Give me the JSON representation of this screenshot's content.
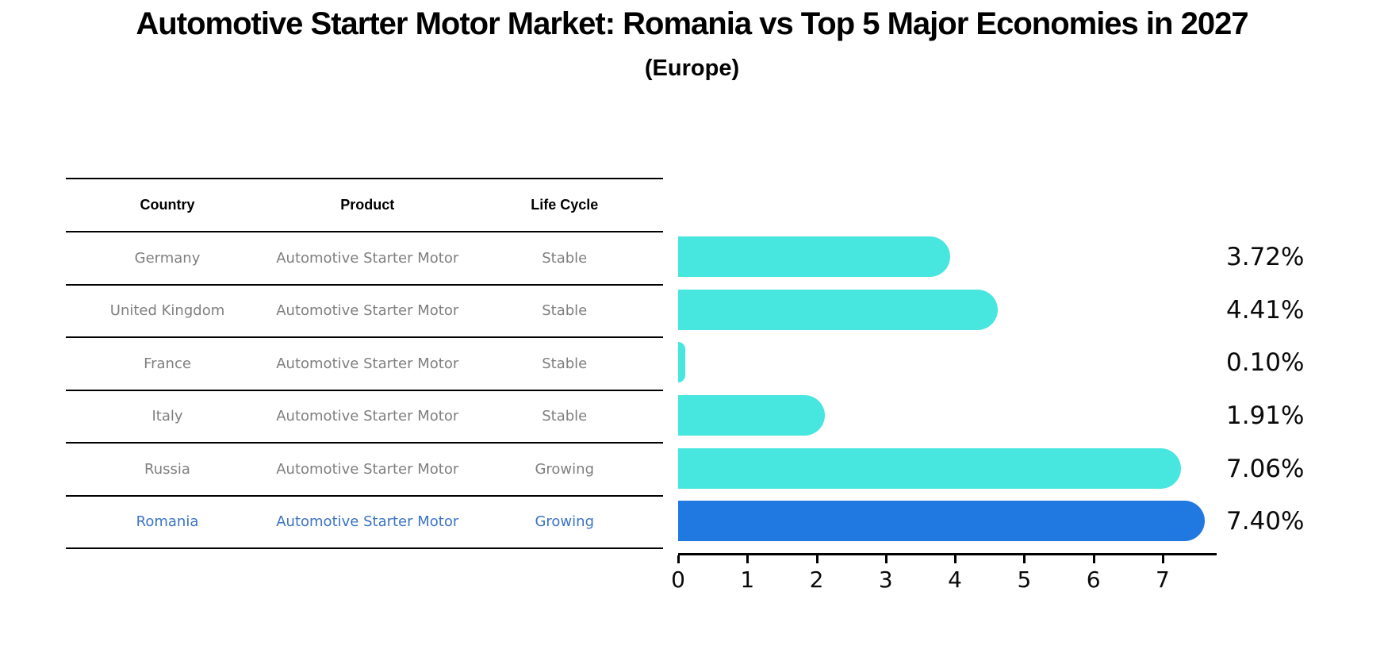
{
  "title": "Automotive Starter Motor Market: Romania vs Top 5 Major Economies in 2027",
  "subtitle": "(Europe)",
  "table": {
    "headers": [
      "Country",
      "Product",
      "Life Cycle"
    ],
    "rows": [
      {
        "country": "Germany",
        "product": "Automotive Starter Motor",
        "life_cycle": "Stable",
        "highlight": false
      },
      {
        "country": "United Kingdom",
        "product": "Automotive Starter Motor",
        "life_cycle": "Stable",
        "highlight": false
      },
      {
        "country": "France",
        "product": "Automotive Starter Motor",
        "life_cycle": "Stable",
        "highlight": false
      },
      {
        "country": "Italy",
        "product": "Automotive Starter Motor",
        "life_cycle": "Stable",
        "highlight": false
      },
      {
        "country": "Russia",
        "product": "Automotive Starter Motor",
        "life_cycle": "Growing",
        "highlight": false
      },
      {
        "country": "Romania",
        "product": "Automotive Starter Motor",
        "life_cycle": "Growing",
        "highlight": true
      }
    ]
  },
  "chart_data": {
    "type": "bar",
    "orientation": "horizontal",
    "title": "Automotive Starter Motor Market: Romania vs Top 5 Major Economies in 2027",
    "subtitle": "(Europe)",
    "categories": [
      "Germany",
      "United Kingdom",
      "France",
      "Italy",
      "Russia",
      "Romania"
    ],
    "values": [
      3.72,
      4.41,
      0.1,
      1.91,
      7.06,
      7.4
    ],
    "value_labels": [
      "3.72%",
      "4.41%",
      "0.10%",
      "1.91%",
      "7.06%",
      "7.40%"
    ],
    "xticks": [
      0,
      1,
      2,
      3,
      4,
      5,
      6,
      7
    ],
    "xlim": [
      0,
      7.78
    ],
    "grid": false,
    "legend": "none",
    "bar_color": "#47E6DF",
    "highlight_color": "#2079E1",
    "highlight_index": 5,
    "row_text_color": "#7F7F7F",
    "text_color_highlight": "#3B74C4",
    "axis_color": "#000000"
  }
}
